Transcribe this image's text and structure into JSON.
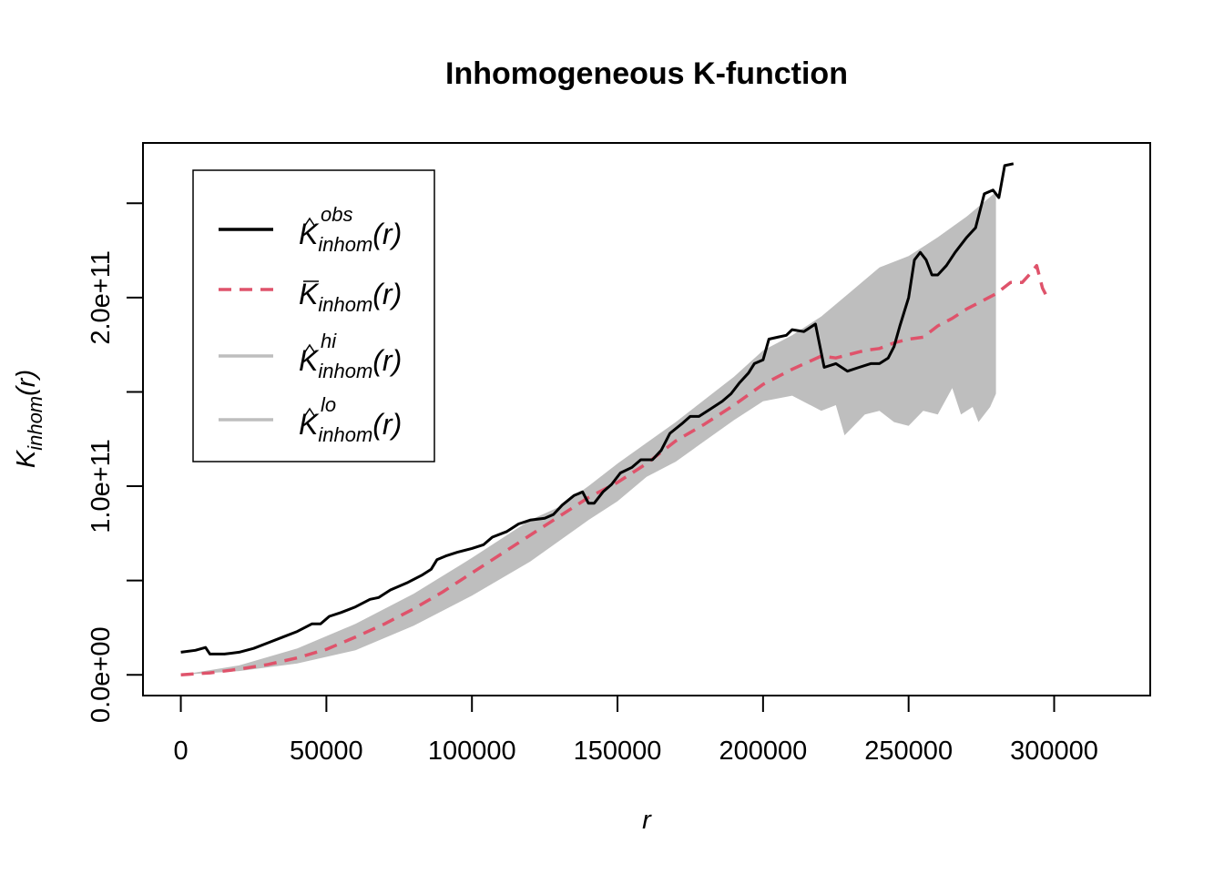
{
  "chart_data": {
    "type": "line",
    "title": "Inhomogeneous K-function",
    "xlabel": "r",
    "ylabel": {
      "main": "K",
      "sub": "inhom",
      "arg": "(r)"
    },
    "xlim": [
      -13000,
      333000
    ],
    "ylim": [
      -11000000000.0,
      282000000000.0
    ],
    "x_ticks": [
      0,
      50000,
      100000,
      150000,
      200000,
      250000,
      300000
    ],
    "x_tick_labels": [
      "0",
      "50000",
      "100000",
      "150000",
      "200000",
      "250000",
      "300000"
    ],
    "y_ticks": [
      0,
      50000000000.0,
      100000000000.0,
      150000000000.0,
      200000000000.0,
      250000000000.0
    ],
    "y_tick_labels": [
      "0.0e+00",
      "",
      "1.0e+11",
      "",
      "2.0e+11",
      ""
    ],
    "grid": false,
    "legend_position": "top-left",
    "colors": {
      "obs": "#000000",
      "theo": "#DF536B",
      "band": "#BEBEBE"
    },
    "legend": [
      {
        "key": "obs",
        "main": "K",
        "sup": "obs",
        "sub": "inhom",
        "arg": "(r)",
        "accent": "hat"
      },
      {
        "key": "theo",
        "main": "K",
        "sup": "",
        "sub": "inhom",
        "arg": "(r)",
        "accent": "bar"
      },
      {
        "key": "hi",
        "main": "K",
        "sup": "hi",
        "sub": "inhom",
        "arg": "(r)",
        "accent": "hat"
      },
      {
        "key": "lo",
        "main": "K",
        "sup": "lo",
        "sub": "inhom",
        "arg": "(r)",
        "accent": "hat"
      }
    ],
    "series": [
      {
        "key": "obs",
        "style": "solid",
        "points": [
          [
            0,
            12000000000.0
          ],
          [
            5000,
            13000000000.0
          ],
          [
            8500,
            14500000000.0
          ],
          [
            10000,
            11000000000.0
          ],
          [
            15000,
            11000000000.0
          ],
          [
            20000,
            12000000000.0
          ],
          [
            25000,
            14000000000.0
          ],
          [
            30000,
            17000000000.0
          ],
          [
            35000,
            20000000000.0
          ],
          [
            40000,
            23000000000.0
          ],
          [
            45000,
            27000000000.0
          ],
          [
            48000,
            27000000000.0
          ],
          [
            51000,
            31000000000.0
          ],
          [
            55000,
            33000000000.0
          ],
          [
            60000,
            36000000000.0
          ],
          [
            65000,
            40000000000.0
          ],
          [
            68000,
            41000000000.0
          ],
          [
            72000,
            45000000000.0
          ],
          [
            78000,
            49000000000.0
          ],
          [
            83000,
            53000000000.0
          ],
          [
            86000,
            56000000000.0
          ],
          [
            88000,
            61000000000.0
          ],
          [
            91000,
            63000000000.0
          ],
          [
            95000,
            65000000000.0
          ],
          [
            100000,
            67000000000.0
          ],
          [
            104000,
            69000000000.0
          ],
          [
            107000,
            73000000000.0
          ],
          [
            112000,
            76000000000.0
          ],
          [
            116000,
            80000000000.0
          ],
          [
            120000,
            82000000000.0
          ],
          [
            125000,
            83000000000.0
          ],
          [
            128000,
            85000000000.0
          ],
          [
            131000,
            90000000000.0
          ],
          [
            135000,
            95000000000.0
          ],
          [
            138000,
            97000000000.0
          ],
          [
            140000,
            91000000000.0
          ],
          [
            142000,
            91000000000.0
          ],
          [
            145000,
            97000000000.0
          ],
          [
            148000,
            101000000000.0
          ],
          [
            151000,
            107000000000.0
          ],
          [
            155000,
            110000000000.0
          ],
          [
            158000,
            114000000000.0
          ],
          [
            162000,
            114000000000.0
          ],
          [
            165000,
            119000000000.0
          ],
          [
            168000,
            128000000000.0
          ],
          [
            172000,
            133000000000.0
          ],
          [
            175000,
            137000000000.0
          ],
          [
            178000,
            137000000000.0
          ],
          [
            182000,
            141000000000.0
          ],
          [
            186000,
            145000000000.0
          ],
          [
            189000,
            149000000000.0
          ],
          [
            192000,
            155000000000.0
          ],
          [
            195000,
            160000000000.0
          ],
          [
            197000,
            165000000000.0
          ],
          [
            200000,
            167000000000.0
          ],
          [
            202000,
            178000000000.0
          ],
          [
            205000,
            179000000000.0
          ],
          [
            208000,
            180000000000.0
          ],
          [
            210000,
            183000000000.0
          ],
          [
            214000,
            182000000000.0
          ],
          [
            218000,
            186000000000.0
          ],
          [
            221000,
            163000000000.0
          ],
          [
            225000,
            165000000000.0
          ],
          [
            229000,
            161000000000.0
          ],
          [
            233000,
            163000000000.0
          ],
          [
            237000,
            165000000000.0
          ],
          [
            240000,
            165000000000.0
          ],
          [
            243000,
            168000000000.0
          ],
          [
            245000,
            174000000000.0
          ],
          [
            247000,
            185000000000.0
          ],
          [
            250000,
            200000000000.0
          ],
          [
            252000,
            220000000000.0
          ],
          [
            254000,
            224000000000.0
          ],
          [
            256000,
            220000000000.0
          ],
          [
            258000,
            212000000000.0
          ],
          [
            260000,
            212000000000.0
          ],
          [
            263000,
            217000000000.0
          ],
          [
            266000,
            224000000000.0
          ],
          [
            270000,
            232000000000.0
          ],
          [
            273000,
            237000000000.0
          ],
          [
            276000,
            255000000000.0
          ],
          [
            279000,
            257000000000.0
          ],
          [
            281000,
            253000000000.0
          ],
          [
            283000,
            270000000000.0
          ],
          [
            286000,
            271000000000.0
          ]
        ]
      },
      {
        "key": "theo",
        "style": "dashed",
        "points": [
          [
            0,
            0
          ],
          [
            10000,
            1000000000.0
          ],
          [
            20000,
            3000000000.0
          ],
          [
            30000,
            5500000000.0
          ],
          [
            40000,
            9000000000.0
          ],
          [
            50000,
            13500000000.0
          ],
          [
            60000,
            20000000000.0
          ],
          [
            70000,
            27000000000.0
          ],
          [
            80000,
            35000000000.0
          ],
          [
            90000,
            44000000000.0
          ],
          [
            100000,
            54000000000.0
          ],
          [
            110000,
            64000000000.0
          ],
          [
            120000,
            74000000000.0
          ],
          [
            130000,
            84000000000.0
          ],
          [
            140000,
            94000000000.0
          ],
          [
            150000,
            102000000000.0
          ],
          [
            160000,
            112000000000.0
          ],
          [
            170000,
            124000000000.0
          ],
          [
            180000,
            133000000000.0
          ],
          [
            190000,
            143000000000.0
          ],
          [
            200000,
            154000000000.0
          ],
          [
            210000,
            162000000000.0
          ],
          [
            220000,
            169000000000.0
          ],
          [
            225000,
            168000000000.0
          ],
          [
            230000,
            170000000000.0
          ],
          [
            235000,
            172000000000.0
          ],
          [
            240000,
            173000000000.0
          ],
          [
            245000,
            176000000000.0
          ],
          [
            250000,
            178000000000.0
          ],
          [
            255000,
            179000000000.0
          ],
          [
            260000,
            185000000000.0
          ],
          [
            265000,
            189000000000.0
          ],
          [
            270000,
            194000000000.0
          ],
          [
            275000,
            198000000000.0
          ],
          [
            280000,
            202000000000.0
          ],
          [
            285000,
            208000000000.0
          ],
          [
            289000,
            208000000000.0
          ],
          [
            292000,
            213000000000.0
          ],
          [
            294000,
            217000000000.0
          ],
          [
            296000,
            205000000000.0
          ],
          [
            298000,
            199000000000.0
          ]
        ]
      },
      {
        "key": "hi",
        "style": "band-upper",
        "points": [
          [
            0,
            0
          ],
          [
            20000,
            5000000000.0
          ],
          [
            40000,
            14000000000.0
          ],
          [
            60000,
            27000000000.0
          ],
          [
            80000,
            43000000000.0
          ],
          [
            100000,
            62000000000.0
          ],
          [
            120000,
            82000000000.0
          ],
          [
            130000,
            89000000000.0
          ],
          [
            140000,
            100000000000.0
          ],
          [
            150000,
            112000000000.0
          ],
          [
            160000,
            123000000000.0
          ],
          [
            170000,
            134000000000.0
          ],
          [
            180000,
            146000000000.0
          ],
          [
            190000,
            158000000000.0
          ],
          [
            200000,
            172000000000.0
          ],
          [
            210000,
            180000000000.0
          ],
          [
            220000,
            190000000000.0
          ],
          [
            230000,
            203000000000.0
          ],
          [
            240000,
            216000000000.0
          ],
          [
            250000,
            222000000000.0
          ],
          [
            260000,
            232000000000.0
          ],
          [
            270000,
            243000000000.0
          ],
          [
            280000,
            256000000000.0
          ]
        ]
      },
      {
        "key": "lo",
        "style": "band-lower",
        "points": [
          [
            0,
            0
          ],
          [
            20000,
            2000000000.0
          ],
          [
            40000,
            6000000000.0
          ],
          [
            60000,
            13000000000.0
          ],
          [
            80000,
            26000000000.0
          ],
          [
            100000,
            42000000000.0
          ],
          [
            120000,
            60000000000.0
          ],
          [
            140000,
            82000000000.0
          ],
          [
            150000,
            92000000000.0
          ],
          [
            160000,
            105000000000.0
          ],
          [
            170000,
            113000000000.0
          ],
          [
            180000,
            124000000000.0
          ],
          [
            190000,
            135000000000.0
          ],
          [
            200000,
            145000000000.0
          ],
          [
            210000,
            148000000000.0
          ],
          [
            220000,
            140000000000.0
          ],
          [
            225000,
            143000000000.0
          ],
          [
            228000,
            127000000000.0
          ],
          [
            235000,
            138000000000.0
          ],
          [
            240000,
            140000000000.0
          ],
          [
            245000,
            134000000000.0
          ],
          [
            250000,
            132000000000.0
          ],
          [
            255000,
            140000000000.0
          ],
          [
            260000,
            138000000000.0
          ],
          [
            265000,
            152000000000.0
          ],
          [
            268000,
            138000000000.0
          ],
          [
            272000,
            142000000000.0
          ],
          [
            274000,
            134000000000.0
          ],
          [
            278000,
            142000000000.0
          ],
          [
            280000,
            149000000000.0
          ]
        ]
      }
    ]
  }
}
